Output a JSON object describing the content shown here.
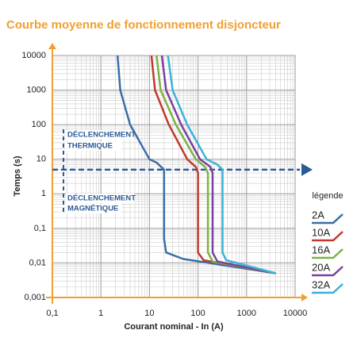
{
  "chart_data": {
    "type": "line",
    "title": "Courbe moyenne de fonctionnement disjoncteur",
    "x_label": "Courant nominal - In (A)",
    "y_label": "Temps (s)",
    "log_x": true,
    "log_y": true,
    "grid": true,
    "xlim": [
      0.1,
      10000
    ],
    "ylim": [
      0.001,
      10000
    ],
    "xticks": [
      {
        "value": 0.1,
        "label": "0,1"
      },
      1,
      10,
      100,
      1000,
      10000
    ],
    "yticks": [
      {
        "value": 0.001,
        "label": "0,001"
      },
      {
        "value": 0.01,
        "label": "0,01"
      },
      {
        "value": 0.1,
        "label": "0,1"
      },
      1,
      10,
      100,
      1000,
      10000
    ],
    "reference_time": 5,
    "annotations": [
      [
        "DÉCLENCHEMENT",
        "THERMIQUE"
      ],
      [
        "DÉCLENCHEMENT",
        "MAGNÉTIQUE"
      ]
    ],
    "legend_title": "légende",
    "legend_position": "right",
    "series": [
      {
        "name": "2A",
        "color": "#3a6ea5",
        "x": [
          2.2,
          2.5,
          4,
          10,
          14,
          20,
          20,
          22,
          50,
          4000
        ],
        "values": [
          10000,
          1000,
          100,
          10,
          8,
          5,
          0.05,
          0.02,
          0.013,
          0.005
        ]
      },
      {
        "name": "10A",
        "color": "#c0392b",
        "x": [
          11,
          13,
          25,
          60,
          90,
          100,
          100,
          130,
          400,
          4000
        ],
        "values": [
          10000,
          1000,
          100,
          10,
          6,
          4,
          0.02,
          0.012,
          0.009,
          0.005
        ]
      },
      {
        "name": "16A",
        "color": "#7cb342",
        "x": [
          14,
          17,
          35,
          90,
          140,
          160,
          160,
          200,
          4000
        ],
        "values": [
          10000,
          1000,
          100,
          10,
          6,
          4,
          0.02,
          0.011,
          0.005
        ]
      },
      {
        "name": "20A",
        "color": "#7b3f9e",
        "x": [
          18,
          22,
          45,
          110,
          180,
          200,
          200,
          250,
          4000
        ],
        "values": [
          10000,
          1000,
          100,
          10,
          6,
          4,
          0.02,
          0.011,
          0.005
        ]
      },
      {
        "name": "32A",
        "color": "#3bb3d6",
        "x": [
          24,
          30,
          60,
          150,
          250,
          320,
          320,
          380,
          4000
        ],
        "values": [
          10000,
          1000,
          100,
          10,
          7,
          5,
          0.02,
          0.012,
          0.005
        ]
      }
    ]
  }
}
